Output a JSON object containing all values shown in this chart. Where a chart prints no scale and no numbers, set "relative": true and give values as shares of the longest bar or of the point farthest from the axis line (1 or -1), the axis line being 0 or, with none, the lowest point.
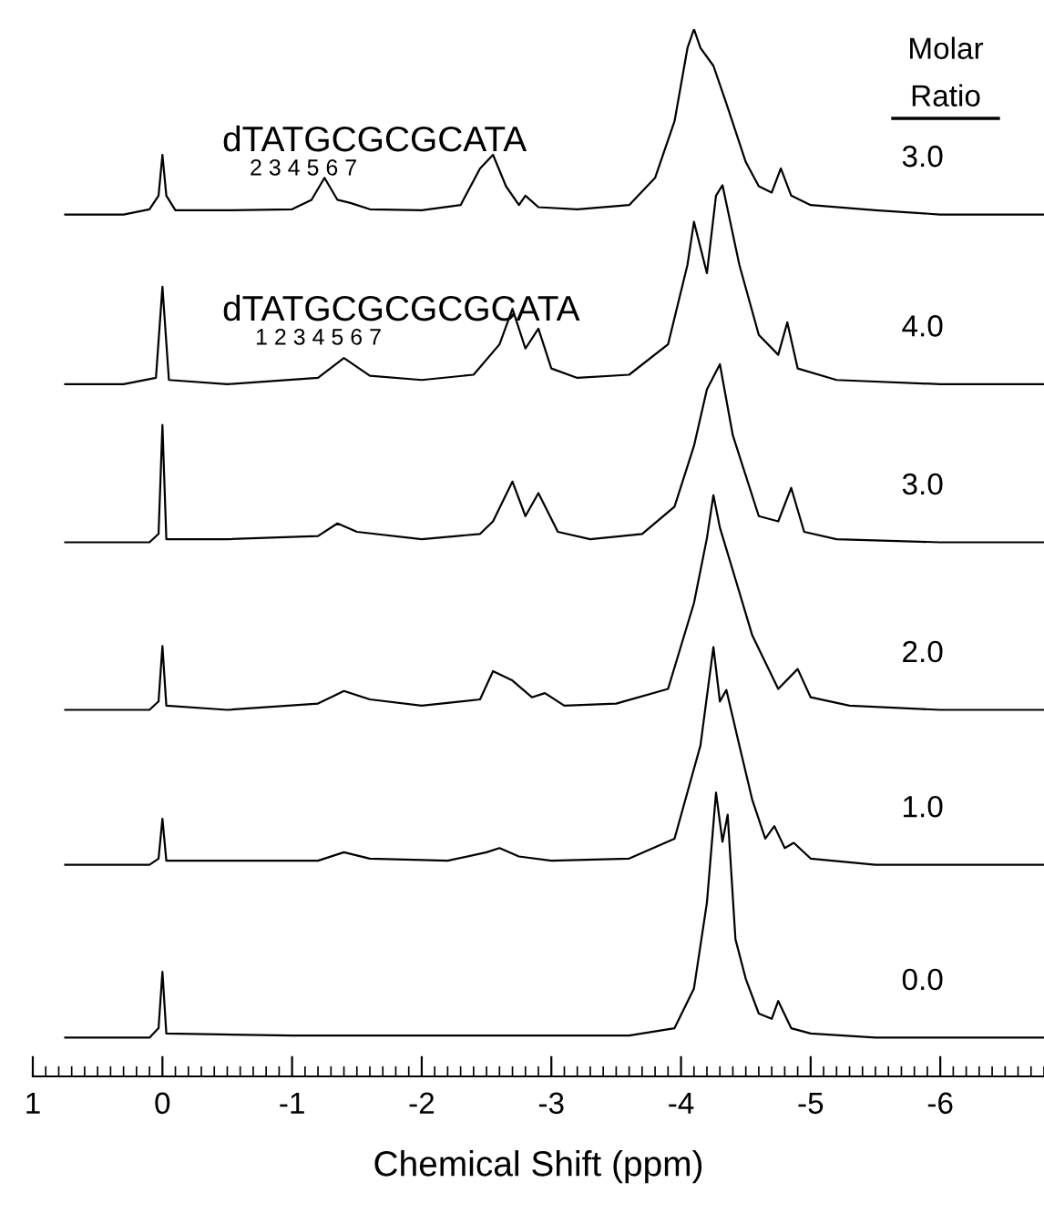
{
  "chart_data": {
    "type": "line",
    "relative": true,
    "xlim": [
      1,
      -6.8
    ],
    "xticks": [
      1,
      0,
      -1,
      -2,
      -3,
      -4,
      -5,
      -6
    ],
    "xlabel": "Chemical Shift (ppm)",
    "legend_title": "Molar Ratio",
    "tick_labels": "x",
    "annotations": [
      "dTATGCGCGCATA",
      "2 3 4 5 6 7",
      "dTATGCGCGCGCATA",
      "1 2 3 4 5 6 7"
    ],
    "series": [
      {
        "name": "3.0",
        "color": "#000000",
        "x": [
          0.75,
          0.3,
          0.1,
          0.03,
          0.0,
          -0.03,
          -0.1,
          -0.5,
          -1.0,
          -1.15,
          -1.25,
          -1.35,
          -1.45,
          -1.6,
          -2.0,
          -2.3,
          -2.45,
          -2.55,
          -2.65,
          -2.75,
          -2.8,
          -2.9,
          -3.2,
          -3.6,
          -3.8,
          -3.95,
          -4.05,
          -4.1,
          -4.15,
          -4.25,
          -4.35,
          -4.5,
          -4.6,
          -4.7,
          -4.77,
          -4.85,
          -5.0,
          -5.5,
          -6.0,
          -6.8
        ],
        "values": [
          0.823,
          0.823,
          0.828,
          0.841,
          0.88,
          0.841,
          0.827,
          0.827,
          0.828,
          0.837,
          0.858,
          0.837,
          0.834,
          0.828,
          0.827,
          0.832,
          0.867,
          0.88,
          0.85,
          0.832,
          0.841,
          0.83,
          0.828,
          0.832,
          0.858,
          0.912,
          0.982,
          1.0,
          0.982,
          0.965,
          0.929,
          0.873,
          0.85,
          0.844,
          0.867,
          0.841,
          0.832,
          0.827,
          0.823,
          0.823
        ]
      },
      {
        "name": "4.0",
        "color": "#000000",
        "x": [
          0.75,
          0.3,
          0.05,
          0.0,
          -0.05,
          -0.5,
          -1.2,
          -1.4,
          -1.6,
          -2.0,
          -2.4,
          -2.6,
          -2.7,
          -2.8,
          -2.9,
          -3.0,
          -3.2,
          -3.6,
          -3.9,
          -4.05,
          -4.1,
          -4.2,
          -4.27,
          -4.32,
          -4.45,
          -4.6,
          -4.75,
          -4.82,
          -4.9,
          -5.2,
          -6.0,
          -6.8
        ],
        "values": [
          0.661,
          0.661,
          0.667,
          0.754,
          0.665,
          0.661,
          0.667,
          0.686,
          0.669,
          0.665,
          0.67,
          0.699,
          0.733,
          0.695,
          0.714,
          0.676,
          0.667,
          0.67,
          0.699,
          0.775,
          0.816,
          0.767,
          0.841,
          0.851,
          0.775,
          0.708,
          0.689,
          0.72,
          0.676,
          0.665,
          0.661,
          0.661
        ]
      },
      {
        "name": "3.0",
        "color": "#000000",
        "x": [
          0.75,
          0.1,
          0.03,
          0.0,
          -0.03,
          -0.5,
          -1.2,
          -1.35,
          -1.5,
          -2.0,
          -2.45,
          -2.55,
          -2.7,
          -2.8,
          -2.9,
          -3.05,
          -3.3,
          -3.7,
          -3.95,
          -4.1,
          -4.2,
          -4.3,
          -4.4,
          -4.6,
          -4.75,
          -4.85,
          -4.95,
          -5.2,
          -6.0,
          -6.8
        ],
        "values": [
          0.51,
          0.51,
          0.518,
          0.622,
          0.513,
          0.513,
          0.516,
          0.528,
          0.52,
          0.513,
          0.518,
          0.53,
          0.568,
          0.535,
          0.557,
          0.52,
          0.513,
          0.518,
          0.544,
          0.602,
          0.656,
          0.68,
          0.612,
          0.535,
          0.53,
          0.562,
          0.52,
          0.513,
          0.51,
          0.51
        ]
      },
      {
        "name": "2.0",
        "color": "#000000",
        "x": [
          0.75,
          0.1,
          0.03,
          0.0,
          -0.03,
          -0.5,
          -1.2,
          -1.4,
          -1.6,
          -2.0,
          -2.45,
          -2.55,
          -2.7,
          -2.85,
          -2.95,
          -3.1,
          -3.5,
          -3.9,
          -4.1,
          -4.2,
          -4.25,
          -4.3,
          -4.4,
          -4.55,
          -4.75,
          -4.9,
          -5.0,
          -5.3,
          -6.0,
          -6.8
        ],
        "values": [
          0.35,
          0.35,
          0.358,
          0.411,
          0.354,
          0.35,
          0.356,
          0.368,
          0.36,
          0.354,
          0.36,
          0.387,
          0.378,
          0.362,
          0.366,
          0.354,
          0.356,
          0.37,
          0.452,
          0.514,
          0.555,
          0.524,
          0.483,
          0.421,
          0.37,
          0.389,
          0.362,
          0.354,
          0.35,
          0.35
        ]
      },
      {
        "name": "1.0",
        "color": "#000000",
        "x": [
          0.75,
          0.1,
          0.03,
          0.0,
          -0.03,
          -0.6,
          -1.2,
          -1.4,
          -1.6,
          -2.2,
          -2.5,
          -2.6,
          -2.75,
          -3.0,
          -3.6,
          -3.95,
          -4.15,
          -4.25,
          -4.3,
          -4.35,
          -4.45,
          -4.55,
          -4.65,
          -4.72,
          -4.8,
          -4.87,
          -5.0,
          -5.5,
          -6.8
        ],
        "values": [
          0.202,
          0.202,
          0.208,
          0.246,
          0.206,
          0.206,
          0.206,
          0.214,
          0.208,
          0.206,
          0.214,
          0.218,
          0.21,
          0.206,
          0.208,
          0.227,
          0.316,
          0.41,
          0.358,
          0.369,
          0.316,
          0.264,
          0.227,
          0.239,
          0.218,
          0.223,
          0.208,
          0.202,
          0.202
        ]
      },
      {
        "name": "0.0",
        "color": "#000000",
        "x": [
          0.75,
          0.1,
          0.03,
          0.0,
          -0.03,
          -1.0,
          -2.0,
          -3.0,
          -3.6,
          -3.95,
          -4.1,
          -4.2,
          -4.27,
          -4.32,
          -4.36,
          -4.42,
          -4.5,
          -4.6,
          -4.7,
          -4.75,
          -4.85,
          -5.0,
          -5.5,
          -6.8
        ],
        "values": [
          0.037,
          0.037,
          0.046,
          0.1,
          0.041,
          0.039,
          0.039,
          0.039,
          0.039,
          0.046,
          0.084,
          0.166,
          0.271,
          0.224,
          0.25,
          0.131,
          0.093,
          0.06,
          0.055,
          0.072,
          0.046,
          0.041,
          0.037,
          0.037
        ]
      }
    ]
  }
}
